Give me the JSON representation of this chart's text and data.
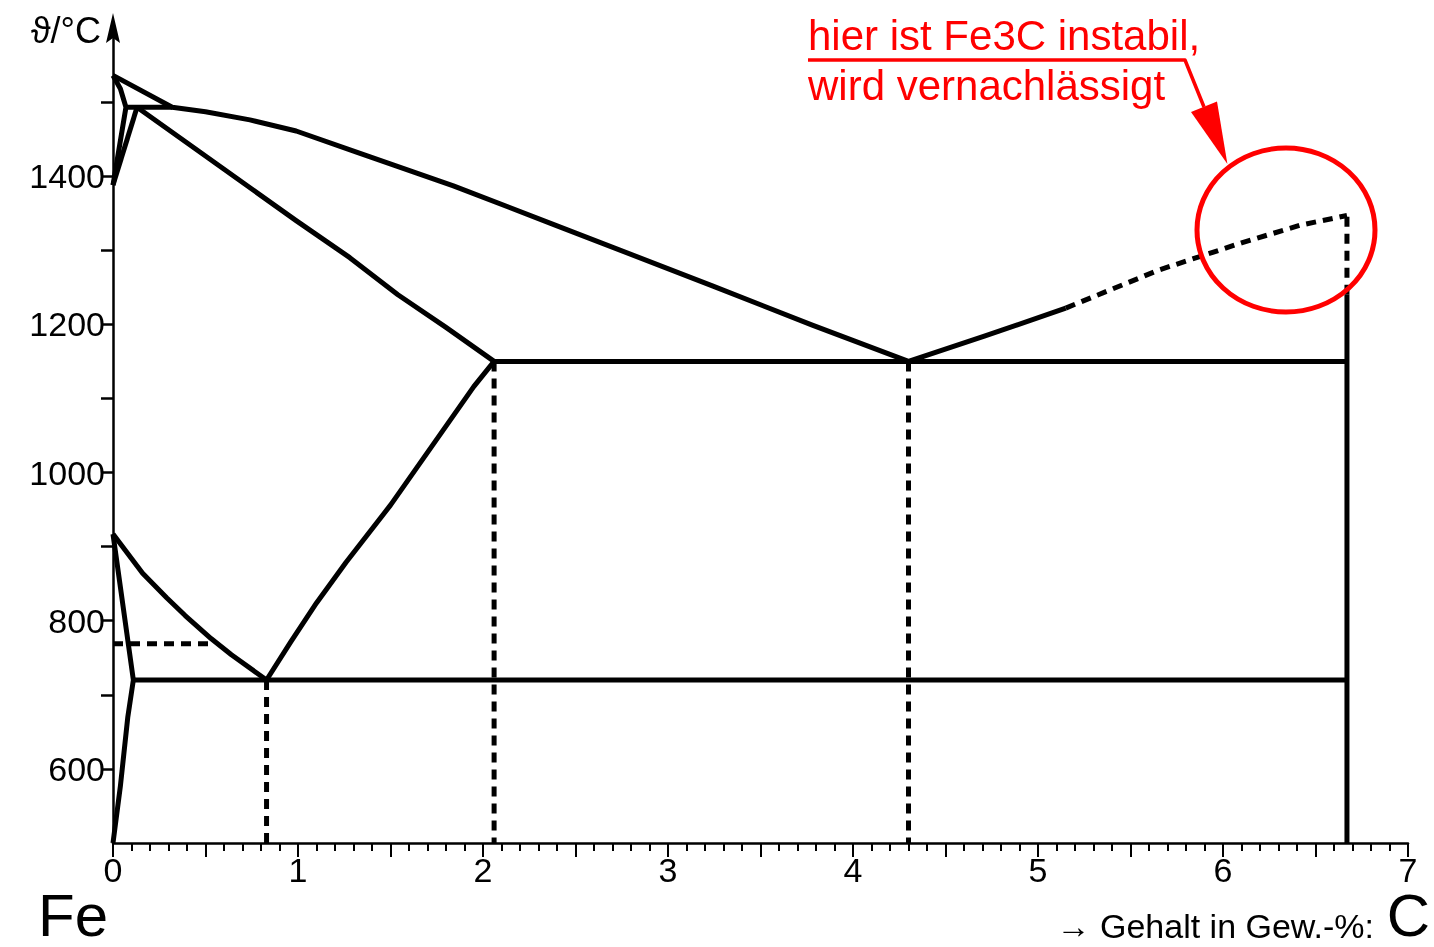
{
  "chart_data": {
    "type": "line",
    "xlabel": "→ Gehalt in Gew.-%:",
    "ylabel": "ϑ/°C",
    "annotations": [
      "hier ist Fe3C instabil,\nwird vernachlässigt",
      "Fe",
      "C"
    ],
    "xlim": [
      0,
      7
    ],
    "xticks": [
      0,
      {
        "value": 0.5,
        "label": null
      },
      1,
      {
        "value": 1.5,
        "label": null
      },
      2,
      {
        "value": 2.5,
        "label": null
      },
      3,
      {
        "value": 3.5,
        "label": null
      },
      4,
      {
        "value": 4.5,
        "label": null
      },
      5,
      {
        "value": 5.5,
        "label": null
      },
      6,
      {
        "value": 6.5,
        "label": null
      },
      7
    ],
    "ylim": [
      500,
      1600
    ],
    "yticks": [
      600,
      {
        "value": 700,
        "label": null
      },
      800,
      {
        "value": 900,
        "label": null
      },
      1000,
      {
        "value": 1100,
        "label": null
      },
      1200,
      {
        "value": 1300,
        "label": null
      },
      1400,
      {
        "value": 1500,
        "label": null
      }
    ],
    "marker": "none",
    "line_style": "solid",
    "series": [
      {
        "color": "#000000",
        "x": [
          0,
          0.32,
          0.5,
          0.74,
          0.99,
          1.32,
          1.84,
          2.39,
          3.24,
          3.78,
          4.3,
          4.71,
          5.15
        ],
        "values": [
          1536,
          1493,
          1487,
          1476,
          1461,
          1432,
          1387,
          1334,
          1252,
          1199,
          1150,
          1184,
          1222
        ]
      },
      {
        "color": "#000000",
        "line_style": "dashed",
        "x": [
          5.15,
          5.65,
          6.1,
          6.42,
          6.67
        ],
        "values": [
          1222,
          1273,
          1310,
          1334,
          1347
        ]
      },
      {
        "color": "#000000",
        "x": [
          0,
          0.04,
          0.07,
          0
        ],
        "values": [
          1536,
          1518,
          1493,
          1388
        ]
      },
      {
        "color": "#000000",
        "x": [
          0.07,
          0.32
        ],
        "values": [
          1493,
          1493
        ]
      },
      {
        "color": "#000000",
        "x": [
          0.13,
          0
        ],
        "values": [
          1493,
          1388
        ]
      },
      {
        "color": "#000000",
        "x": [
          0.13,
          0.99,
          1.28,
          1.54,
          1.8,
          2.06,
          6.67
        ],
        "values": [
          1493,
          1340,
          1290,
          1240,
          1196,
          1150,
          1150
        ]
      },
      {
        "color": "#000000",
        "x": [
          6.67,
          6.67
        ],
        "values": [
          500,
          1240
        ]
      },
      {
        "color": "#000000",
        "line_style": "dashed",
        "x": [
          6.67,
          6.67
        ],
        "values": [
          1240,
          1347
        ]
      },
      {
        "color": "#000000",
        "x": [
          0,
          0.16,
          0.29,
          0.39,
          0.53,
          0.64,
          0.83
        ],
        "values": [
          917,
          864,
          831,
          807,
          776,
          754,
          720
        ]
      },
      {
        "color": "#000000",
        "x": [
          0.83,
          0.96,
          1.1,
          1.26,
          1.5,
          1.95,
          2.06
        ],
        "values": [
          720,
          771,
          824,
          879,
          956,
          1116,
          1150
        ]
      },
      {
        "color": "#000000",
        "x": [
          0,
          0.11,
          0.08,
          0.04,
          0
        ],
        "values": [
          917,
          720,
          670,
          577,
          500
        ]
      },
      {
        "color": "#000000",
        "x": [
          0.11,
          6.67
        ],
        "values": [
          720,
          720
        ]
      },
      {
        "color": "#000000",
        "line_style": "dashed",
        "x": [
          0,
          0.53
        ],
        "values": [
          769,
          769
        ]
      },
      {
        "color": "#000000",
        "line_style": "dashed",
        "x": [
          0.83,
          0.83
        ],
        "values": [
          720,
          500
        ]
      },
      {
        "color": "#000000",
        "line_style": "dashed",
        "x": [
          2.06,
          2.06
        ],
        "values": [
          1150,
          500
        ]
      },
      {
        "color": "#000000",
        "line_style": "dashed",
        "x": [
          4.3,
          4.3
        ],
        "values": [
          1150,
          500
        ]
      }
    ]
  }
}
